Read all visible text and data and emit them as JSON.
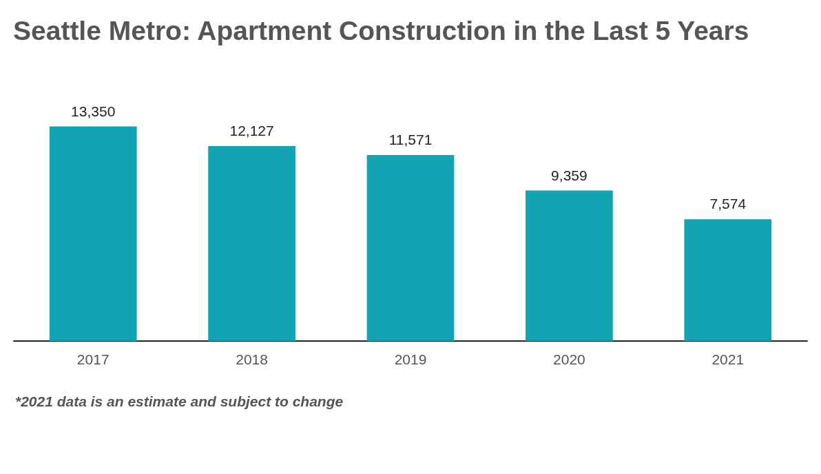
{
  "chart_data": {
    "type": "bar",
    "title": "Seattle Metro: Apartment Construction in the Last 5 Years",
    "categories": [
      "2017",
      "2018",
      "2019",
      "2020",
      "2021"
    ],
    "values": [
      13350,
      12127,
      11571,
      9359,
      7574
    ],
    "color": "#13a4b4",
    "value_labels": [
      "13,350",
      "12,127",
      "11,571",
      "9,359",
      "7,574"
    ],
    "grid": false,
    "annotations": [
      "*2021 data is an estimate and subject to change"
    ]
  }
}
